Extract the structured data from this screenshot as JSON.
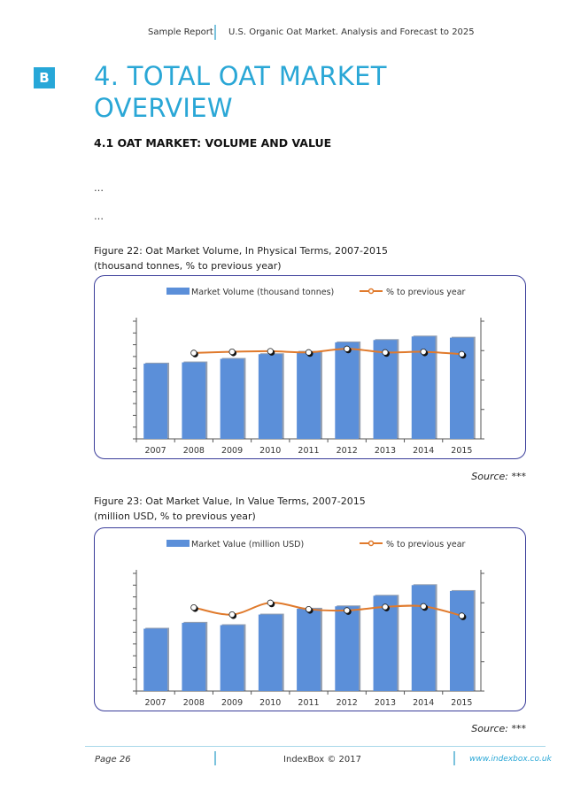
{
  "header": {
    "left": "Sample Report",
    "right": "U.S. Organic Oat Market. Analysis and Forecast to 2025"
  },
  "logo": {
    "letter": "B"
  },
  "section": {
    "title_line1": "4. TOTAL OAT MARKET",
    "title_line2": "OVERVIEW",
    "subtitle": "4.1 OAT MARKET: VOLUME AND VALUE",
    "ellipsis1": "…",
    "ellipsis2": "…"
  },
  "figure22": {
    "caption1": "Figure 22: Oat Market Volume, In Physical Terms, 2007-2015",
    "caption2": "(thousand tonnes, % to previous year)",
    "source": "Source: ***"
  },
  "figure23": {
    "caption1": "Figure 23: Oat Market Value, In Value Terms, 2007-2015",
    "caption2": "(million USD, % to previous year)",
    "source": "Source: ***"
  },
  "footer": {
    "page": "Page 26",
    "copyright": "IndexBox © 2017",
    "url": "www.indexbox.co.uk"
  },
  "colors": {
    "accent": "#2aa7d6",
    "bar": "#5b8fd9",
    "line": "#e07a2c",
    "frame": "#3a3d9a"
  },
  "chart_data": [
    {
      "type": "bar",
      "categories": [
        "2007",
        "2008",
        "2009",
        "2010",
        "2011",
        "2012",
        "2013",
        "2014",
        "2015"
      ],
      "series": [
        {
          "name": "Market Volume (thousand tonnes)",
          "kind": "bar",
          "axis": "left",
          "values": [
            64,
            65,
            68,
            72,
            74,
            82,
            84,
            87,
            86
          ]
        },
        {
          "name": "% to previous year",
          "kind": "line",
          "axis": "right",
          "values": [
            null,
            0.46,
            0.48,
            0.49,
            0.47,
            0.53,
            0.47,
            0.48,
            0.44
          ]
        }
      ],
      "ylim": [
        0,
        100
      ],
      "y2lim": [
        -1,
        1
      ],
      "legend": "top"
    },
    {
      "type": "bar",
      "categories": [
        "2007",
        "2008",
        "2009",
        "2010",
        "2011",
        "2012",
        "2013",
        "2014",
        "2015"
      ],
      "series": [
        {
          "name": "Market Value (million USD)",
          "kind": "bar",
          "axis": "left",
          "values": [
            53,
            58,
            56,
            65,
            70,
            72,
            81,
            90,
            85
          ]
        },
        {
          "name": "% to previous year",
          "kind": "line",
          "axis": "right",
          "values": [
            null,
            0.42,
            0.3,
            0.5,
            0.39,
            0.37,
            0.43,
            0.44,
            0.28
          ]
        }
      ],
      "ylim": [
        0,
        100
      ],
      "y2lim": [
        -1,
        1
      ],
      "legend": "top"
    }
  ]
}
